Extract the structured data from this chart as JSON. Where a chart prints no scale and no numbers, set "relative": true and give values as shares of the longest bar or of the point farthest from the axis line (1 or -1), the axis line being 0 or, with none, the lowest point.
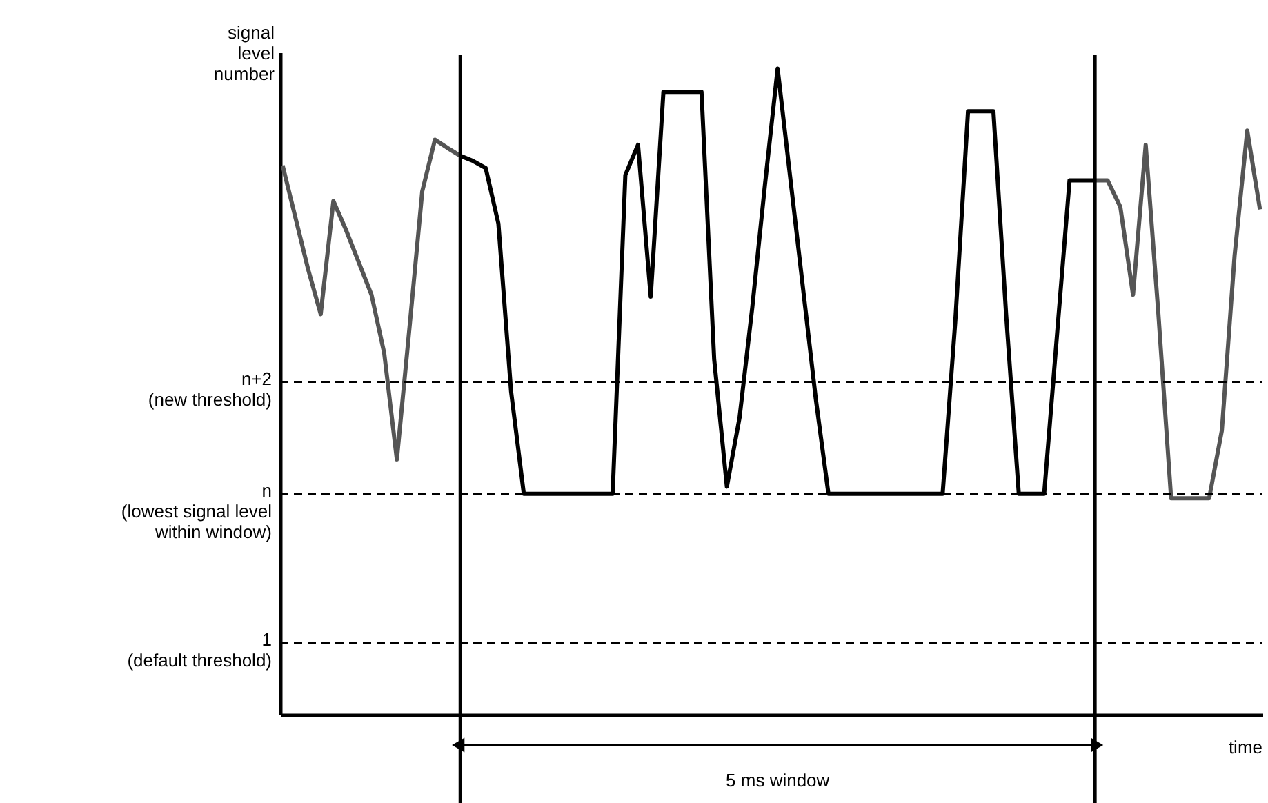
{
  "chart_data": {
    "type": "line",
    "relative": true,
    "ylabel": "signal level number",
    "xlabel": "time",
    "tick_labels": false,
    "grid": false,
    "marker": "none",
    "line_style": "solid",
    "categories": [
      null,
      null,
      null,
      null,
      null,
      null,
      null,
      null,
      null,
      null,
      null,
      null,
      null,
      null,
      null,
      null,
      null,
      null,
      null,
      null,
      null,
      null,
      null,
      null,
      null,
      null,
      null,
      null,
      null,
      null,
      null,
      null,
      null,
      null,
      null,
      null,
      null,
      null,
      null,
      null,
      null,
      null,
      null,
      null,
      null,
      null,
      null,
      null,
      null,
      null,
      null,
      null,
      null,
      null,
      null,
      null,
      null,
      null,
      null,
      null,
      null,
      null,
      null,
      null,
      null,
      null,
      null,
      null,
      null,
      null,
      null,
      null,
      null,
      null,
      null,
      null,
      null,
      null
    ],
    "series": [
      {
        "color": "#555555",
        "values": [
          0.85,
          0.77,
          0.69,
          0.62,
          0.795,
          0.75,
          0.7,
          0.65,
          0.56,
          0.395,
          0.6,
          0.81,
          0.89,
          0.877,
          0.865,
          null,
          null,
          null,
          null,
          null,
          null,
          null,
          null,
          null,
          null,
          null,
          null,
          null,
          null,
          null,
          null,
          null,
          null,
          null,
          null,
          null,
          null,
          null,
          null,
          null,
          null,
          null,
          null,
          null,
          null,
          null,
          null,
          null,
          null,
          null,
          null,
          null,
          null,
          null,
          null,
          null,
          null,
          null,
          null,
          null,
          null,
          null,
          null,
          null,
          null,
          null,
          null,
          null,
          null,
          null,
          null,
          null,
          null,
          null,
          null,
          null,
          null,
          null
        ]
      },
      {
        "color": "#000000",
        "values": [
          null,
          null,
          null,
          null,
          null,
          null,
          null,
          null,
          null,
          null,
          null,
          null,
          null,
          null,
          0.865,
          0.857,
          0.846,
          0.76,
          0.5,
          0.342,
          0.342,
          0.342,
          0.342,
          0.342,
          0.342,
          0.342,
          0.342,
          0.835,
          0.882,
          0.647,
          0.964,
          0.964,
          0.964,
          0.964,
          0.55,
          0.353,
          0.46,
          0.63,
          0.82,
          1,
          0.83,
          0.66,
          0.49,
          0.342,
          0.342,
          0.342,
          0.342,
          0.342,
          0.342,
          0.342,
          0.342,
          0.342,
          0.342,
          0.61,
          0.934,
          0.934,
          0.934,
          0.62,
          0.342,
          0.342,
          0.342,
          0.585,
          0.827,
          0.827,
          0.827,
          null,
          null,
          null,
          null,
          null,
          null,
          null,
          null,
          null,
          null,
          null,
          null,
          null
        ]
      },
      {
        "color": "#555555",
        "values": [
          null,
          null,
          null,
          null,
          null,
          null,
          null,
          null,
          null,
          null,
          null,
          null,
          null,
          null,
          null,
          null,
          null,
          null,
          null,
          null,
          null,
          null,
          null,
          null,
          null,
          null,
          null,
          null,
          null,
          null,
          null,
          null,
          null,
          null,
          null,
          null,
          null,
          null,
          null,
          null,
          null,
          null,
          null,
          null,
          null,
          null,
          null,
          null,
          null,
          null,
          null,
          null,
          null,
          null,
          null,
          null,
          null,
          null,
          null,
          null,
          null,
          null,
          null,
          null,
          0.827,
          0.827,
          0.786,
          0.65,
          0.882,
          0.62,
          0.335,
          0.335,
          0.335,
          0.335,
          0.44,
          0.71,
          0.904,
          0.782
        ]
      }
    ],
    "ref_lines": [
      {
        "axis": "y",
        "value": 0.515,
        "label": "n+2\n(new threshold)",
        "line_style": "dashed",
        "color": "#000000"
      },
      {
        "axis": "y",
        "value": 0.342,
        "label": "n\n(lowest signal level\nwithin window)",
        "line_style": "dashed",
        "color": "#000000"
      },
      {
        "axis": "y",
        "value": 0.111,
        "label": "1\n(default threshold)",
        "line_style": "dashed",
        "color": "#000000"
      }
    ],
    "annotations": [
      "5 ms window"
    ]
  }
}
